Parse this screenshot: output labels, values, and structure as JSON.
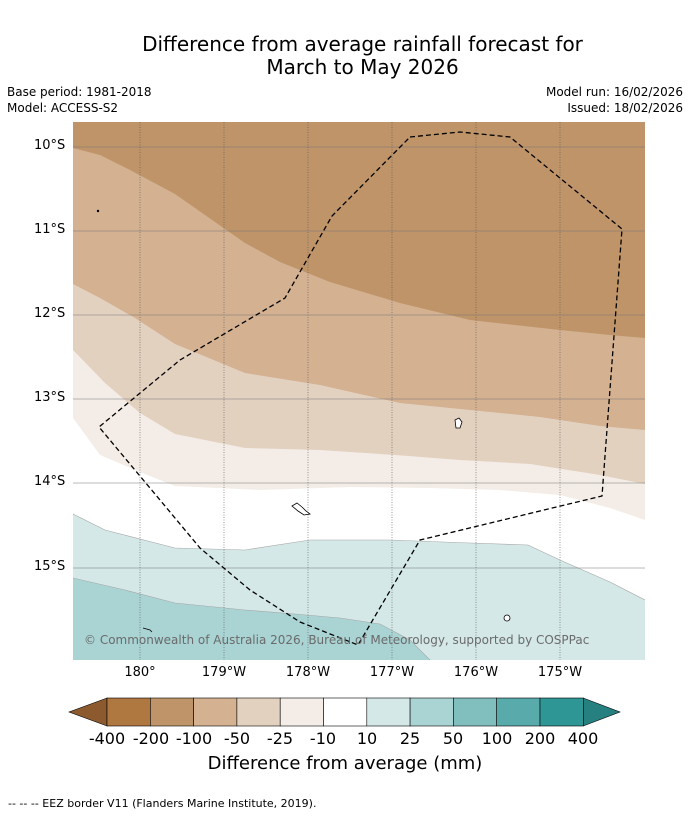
{
  "title": {
    "line1": "Difference from average rainfall forecast for",
    "line2": "March to May 2026"
  },
  "meta": {
    "base_period": "Base period: 1981-2018",
    "model": "Model: ACCESS-S2",
    "model_run": "Model run: 16/02/2026",
    "issued": "Issued: 18/02/2026"
  },
  "axes": {
    "lat_labels": [
      "10°S",
      "11°S",
      "12°S",
      "13°S",
      "14°S",
      "15°S"
    ],
    "lon_labels": [
      "180°",
      "179°W",
      "178°W",
      "177°W",
      "176°W",
      "175°W"
    ]
  },
  "copyright": "© Commonwealth of Australia 2026, Bureau of Meteorology, supported by COSPPac",
  "colorbar": {
    "labels": [
      "-400",
      "-200",
      "-100",
      "-50",
      "-25",
      "-10",
      "10",
      "25",
      "50",
      "100",
      "200",
      "400"
    ],
    "colors": [
      "#8c5a2e",
      "#af7840",
      "#bf9469",
      "#d3b191",
      "#e3d1c0",
      "#f4ede7",
      "#ffffff",
      "#d4e8e7",
      "#aad4d4",
      "#81bfbf",
      "#58aaab",
      "#2e9695",
      "#26807f"
    ],
    "title": "Difference from average (mm)"
  },
  "map": {
    "band_colors": {
      "dry_strong": "#bf9469",
      "dry_mid": "#d3b191",
      "dry_light": "#e3d1c0",
      "dry_faint": "#f4ede7",
      "neutral": "#ffffff",
      "wet_faint": "#d4e8e7",
      "wet_light": "#aad4d4"
    }
  },
  "footer": "--  --  -- EEZ border V11 (Flanders Marine Institute, 2019)."
}
